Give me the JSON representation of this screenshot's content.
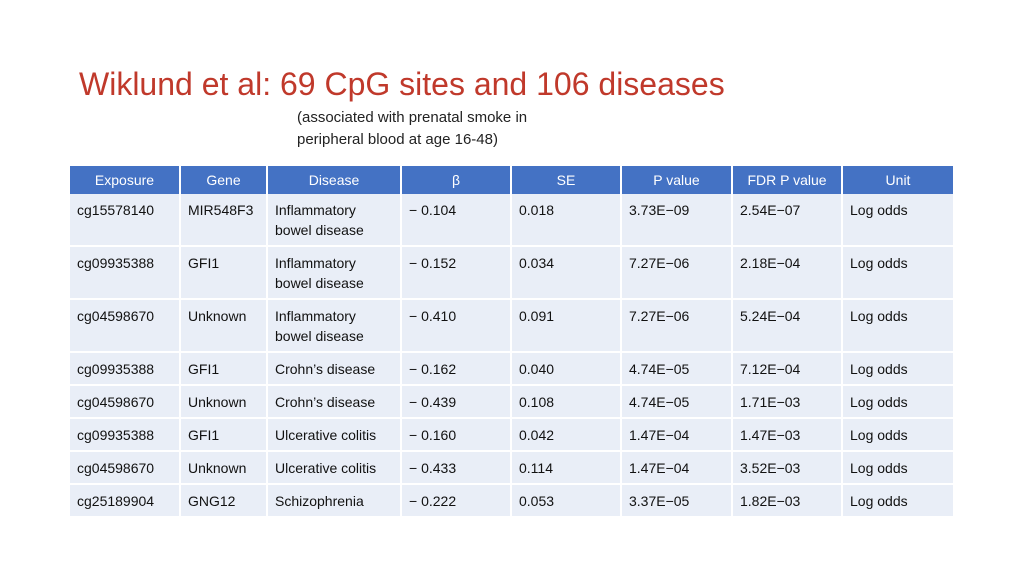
{
  "slide": {
    "title": "Wiklund et al: 69 CpG sites and 106 diseases",
    "subtitle_line1": "(associated with prenatal smoke in",
    "subtitle_line2": "peripheral blood at age 16-48)"
  },
  "table": {
    "headers": [
      "Exposure",
      "Gene",
      "Disease",
      "β",
      "SE",
      "P value",
      "FDR P value",
      "Unit"
    ],
    "rows": [
      [
        "cg15578140",
        "MIR548F3",
        "Inflammatory bowel disease",
        "− 0.104",
        "0.018",
        "3.73E−09",
        "2.54E−07",
        "Log odds"
      ],
      [
        "cg09935388",
        "GFI1",
        "Inflammatory bowel disease",
        "− 0.152",
        "0.034",
        "7.27E−06",
        "2.18E−04",
        "Log odds"
      ],
      [
        "cg04598670",
        "Unknown",
        "Inflammatory bowel disease",
        "− 0.410",
        "0.091",
        "7.27E−06",
        "5.24E−04",
        "Log odds"
      ],
      [
        "cg09935388",
        "GFI1",
        "Crohn’s disease",
        "− 0.162",
        "0.040",
        "4.74E−05",
        "7.12E−04",
        "Log odds"
      ],
      [
        "cg04598670",
        "Unknown",
        "Crohn’s disease",
        "− 0.439",
        "0.108",
        "4.74E−05",
        "1.71E−03",
        "Log odds"
      ],
      [
        "cg09935388",
        "GFI1",
        "Ulcerative colitis",
        "− 0.160",
        "0.042",
        "1.47E−04",
        "1.47E−03",
        "Log odds"
      ],
      [
        "cg04598670",
        "Unknown",
        "Ulcerative colitis",
        "− 0.433",
        "0.114",
        "1.47E−04",
        "3.52E−03",
        "Log odds"
      ],
      [
        "cg25189904",
        "GNG12",
        "Schizophrenia",
        "− 0.222",
        "0.053",
        "3.37E−05",
        "1.82E−03",
        "Log odds"
      ]
    ]
  },
  "colors": {
    "title": "#c0392b",
    "header_bg": "#4472c4",
    "row_bg": "#e9eef7"
  }
}
